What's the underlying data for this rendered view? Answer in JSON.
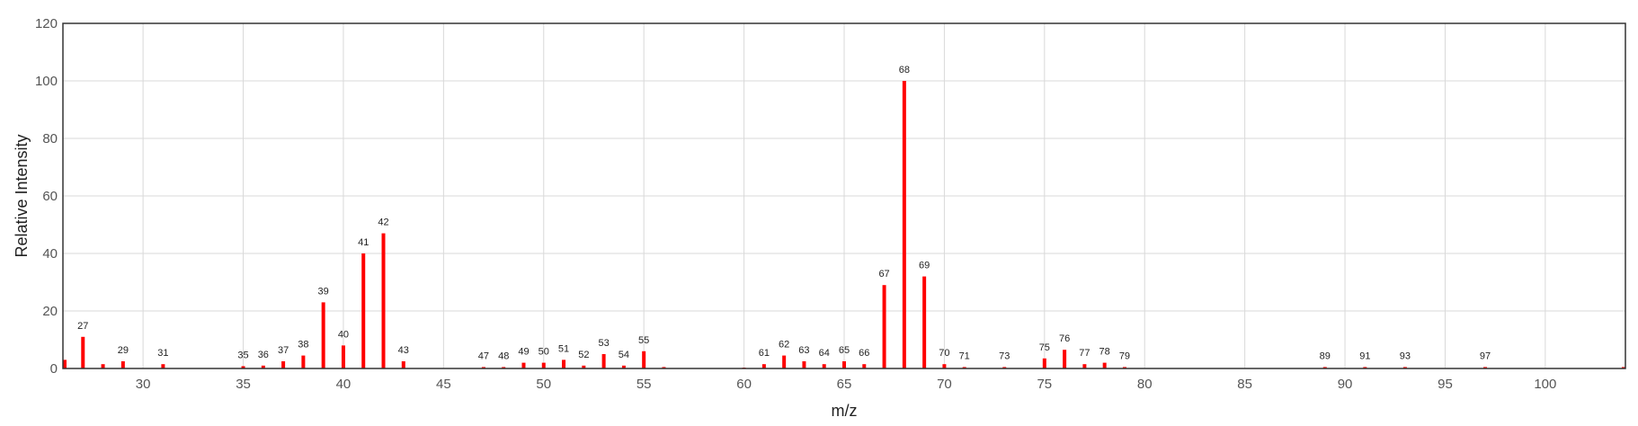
{
  "chart_data": {
    "type": "bar",
    "title": "",
    "xlabel": "m/z",
    "ylabel": "Relative Intensity",
    "xlim": [
      26,
      104
    ],
    "ylim": [
      0,
      120
    ],
    "grid": true,
    "bar_color": "#ff0000",
    "x_ticks": [
      30,
      35,
      40,
      45,
      50,
      55,
      60,
      65,
      70,
      75,
      80,
      85,
      90,
      95,
      100
    ],
    "y_ticks": [
      0,
      20,
      40,
      60,
      80,
      100,
      120
    ],
    "peaks": [
      {
        "mz": 26,
        "intensity": 3,
        "label": ""
      },
      {
        "mz": 27,
        "intensity": 11,
        "label": "27"
      },
      {
        "mz": 28,
        "intensity": 1.5,
        "label": ""
      },
      {
        "mz": 29,
        "intensity": 2.5,
        "label": "29"
      },
      {
        "mz": 31,
        "intensity": 1.5,
        "label": "31"
      },
      {
        "mz": 35,
        "intensity": 0.8,
        "label": "35"
      },
      {
        "mz": 36,
        "intensity": 1,
        "label": "36"
      },
      {
        "mz": 37,
        "intensity": 2.5,
        "label": "37"
      },
      {
        "mz": 38,
        "intensity": 4.5,
        "label": "38"
      },
      {
        "mz": 39,
        "intensity": 23,
        "label": "39"
      },
      {
        "mz": 40,
        "intensity": 8,
        "label": "40"
      },
      {
        "mz": 41,
        "intensity": 40,
        "label": "41"
      },
      {
        "mz": 42,
        "intensity": 47,
        "label": "42"
      },
      {
        "mz": 43,
        "intensity": 2.5,
        "label": "43"
      },
      {
        "mz": 47,
        "intensity": 0.5,
        "label": "47"
      },
      {
        "mz": 48,
        "intensity": 0.5,
        "label": "48"
      },
      {
        "mz": 49,
        "intensity": 2,
        "label": "49"
      },
      {
        "mz": 50,
        "intensity": 2,
        "label": "50"
      },
      {
        "mz": 51,
        "intensity": 3,
        "label": "51"
      },
      {
        "mz": 52,
        "intensity": 1,
        "label": "52"
      },
      {
        "mz": 53,
        "intensity": 5,
        "label": "53"
      },
      {
        "mz": 54,
        "intensity": 1,
        "label": "54"
      },
      {
        "mz": 55,
        "intensity": 6,
        "label": "55"
      },
      {
        "mz": 56,
        "intensity": 0.5,
        "label": ""
      },
      {
        "mz": 60,
        "intensity": 0.3,
        "label": ""
      },
      {
        "mz": 61,
        "intensity": 1.5,
        "label": "61"
      },
      {
        "mz": 62,
        "intensity": 4.5,
        "label": "62"
      },
      {
        "mz": 63,
        "intensity": 2.5,
        "label": "63"
      },
      {
        "mz": 64,
        "intensity": 1.5,
        "label": "64"
      },
      {
        "mz": 65,
        "intensity": 2.5,
        "label": "65"
      },
      {
        "mz": 66,
        "intensity": 1.5,
        "label": "66"
      },
      {
        "mz": 67,
        "intensity": 29,
        "label": "67"
      },
      {
        "mz": 68,
        "intensity": 100,
        "label": "68"
      },
      {
        "mz": 69,
        "intensity": 32,
        "label": "69"
      },
      {
        "mz": 70,
        "intensity": 1.5,
        "label": "70"
      },
      {
        "mz": 71,
        "intensity": 0.5,
        "label": "71"
      },
      {
        "mz": 73,
        "intensity": 0.5,
        "label": "73"
      },
      {
        "mz": 75,
        "intensity": 3.5,
        "label": "75"
      },
      {
        "mz": 76,
        "intensity": 6.5,
        "label": "76"
      },
      {
        "mz": 77,
        "intensity": 1.5,
        "label": "77"
      },
      {
        "mz": 78,
        "intensity": 2,
        "label": "78"
      },
      {
        "mz": 79,
        "intensity": 0.5,
        "label": "79"
      },
      {
        "mz": 89,
        "intensity": 0.5,
        "label": "89"
      },
      {
        "mz": 91,
        "intensity": 0.5,
        "label": "91"
      },
      {
        "mz": 93,
        "intensity": 0.5,
        "label": "93"
      },
      {
        "mz": 97,
        "intensity": 0.5,
        "label": "97"
      },
      {
        "mz": 104,
        "intensity": 0.5,
        "label": ""
      }
    ]
  }
}
